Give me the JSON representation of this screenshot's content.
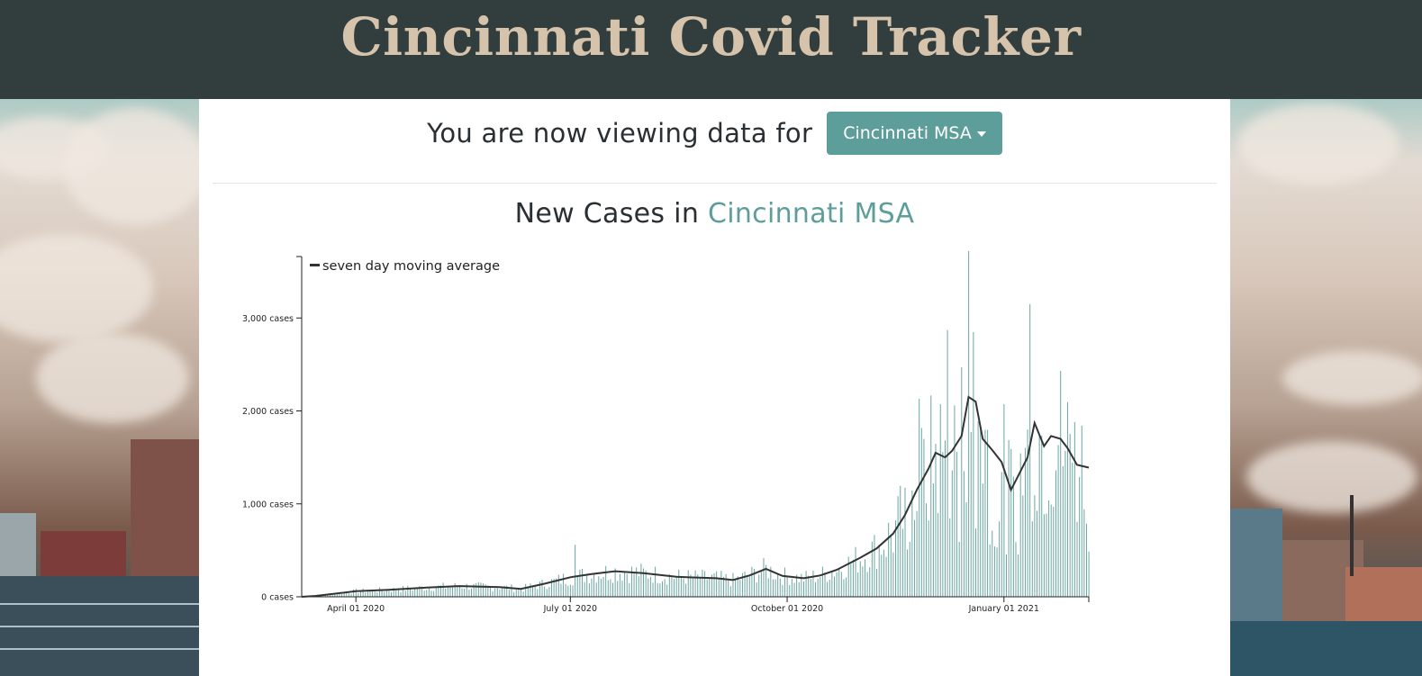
{
  "header": {
    "title": "Cincinnati Covid Tracker"
  },
  "viewing": {
    "prefix": "You are now viewing data for",
    "region_dropdown_label": "Cincinnati MSA"
  },
  "chart_title": {
    "prefix": "New Cases in",
    "region": "Cincinnati MSA"
  },
  "colors": {
    "header_bg": "#323e3e",
    "title": "#d6c3ac",
    "accent": "#5e9e9a",
    "bar": "#6aa6a2",
    "line": "#333333"
  },
  "chart_data": {
    "type": "bar",
    "title": "New Cases in Cincinnati MSA",
    "legend": [
      "seven day moving average"
    ],
    "legend_position": "top-left",
    "xlabel": "",
    "ylabel": "",
    "x_ticks": [
      "April 01 2020",
      "July 01 2020",
      "October 01 2020",
      "January 01 2021"
    ],
    "y_ticks": [
      "0 cases",
      "1,000 cases",
      "2,000 cases",
      "3,000 cases"
    ],
    "ylim": [
      0,
      3700
    ],
    "x_range": [
      "2020-03-09",
      "2021-02-06"
    ],
    "grid": false,
    "series": [
      {
        "name": "seven day moving average",
        "type": "line",
        "points": [
          [
            "2020-03-09",
            0
          ],
          [
            "2020-03-15",
            10
          ],
          [
            "2020-03-22",
            30
          ],
          [
            "2020-04-01",
            60
          ],
          [
            "2020-04-15",
            75
          ],
          [
            "2020-05-01",
            100
          ],
          [
            "2020-05-15",
            115
          ],
          [
            "2020-06-01",
            105
          ],
          [
            "2020-06-10",
            85
          ],
          [
            "2020-06-20",
            140
          ],
          [
            "2020-07-01",
            210
          ],
          [
            "2020-07-10",
            245
          ],
          [
            "2020-07-20",
            275
          ],
          [
            "2020-08-01",
            255
          ],
          [
            "2020-08-15",
            215
          ],
          [
            "2020-09-01",
            200
          ],
          [
            "2020-09-08",
            180
          ],
          [
            "2020-09-15",
            230
          ],
          [
            "2020-09-22",
            300
          ],
          [
            "2020-09-29",
            225
          ],
          [
            "2020-10-08",
            200
          ],
          [
            "2020-10-15",
            230
          ],
          [
            "2020-10-22",
            290
          ],
          [
            "2020-11-01",
            420
          ],
          [
            "2020-11-08",
            520
          ],
          [
            "2020-11-15",
            680
          ],
          [
            "2020-11-20",
            880
          ],
          [
            "2020-11-25",
            1150
          ],
          [
            "2020-11-30",
            1380
          ],
          [
            "2020-12-03",
            1550
          ],
          [
            "2020-12-07",
            1500
          ],
          [
            "2020-12-10",
            1570
          ],
          [
            "2020-12-14",
            1730
          ],
          [
            "2020-12-17",
            2150
          ],
          [
            "2020-12-20",
            2100
          ],
          [
            "2020-12-23",
            1700
          ],
          [
            "2020-12-27",
            1580
          ],
          [
            "2020-12-31",
            1450
          ],
          [
            "2021-01-04",
            1150
          ],
          [
            "2021-01-07",
            1300
          ],
          [
            "2021-01-11",
            1500
          ],
          [
            "2021-01-14",
            1870
          ],
          [
            "2021-01-18",
            1620
          ],
          [
            "2021-01-21",
            1730
          ],
          [
            "2021-01-25",
            1700
          ],
          [
            "2021-01-28",
            1600
          ],
          [
            "2021-02-01",
            1420
          ],
          [
            "2021-02-06",
            1390
          ]
        ]
      },
      {
        "name": "",
        "type": "bar",
        "generated_from": "daily new cases",
        "spikes": [
          [
            "2020-07-03",
            560
          ],
          [
            "2020-12-08",
            2870
          ],
          [
            "2020-12-17",
            3720
          ],
          [
            "2021-01-12",
            3150
          ],
          [
            "2020-11-26",
            2130
          ],
          [
            "2021-01-31",
            1880
          ]
        ]
      }
    ]
  }
}
